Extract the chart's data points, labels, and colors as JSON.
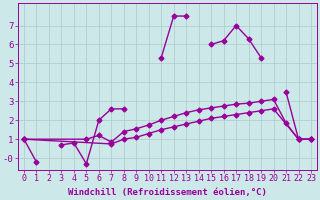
{
  "xlabel": "Windchill (Refroidissement éolien,°C)",
  "background_color": "#cce8e8",
  "grid_color": "#aacccc",
  "line_color": "#990099",
  "x": [
    0,
    1,
    2,
    3,
    4,
    5,
    6,
    7,
    8,
    9,
    10,
    11,
    12,
    13,
    14,
    15,
    16,
    17,
    18,
    19,
    20,
    21,
    22,
    23
  ],
  "series1": [
    1.0,
    -0.2,
    null,
    0.7,
    0.8,
    -0.3,
    2.0,
    2.6,
    2.6,
    null,
    null,
    5.3,
    7.5,
    7.5,
    null,
    6.0,
    6.2,
    7.0,
    6.3,
    5.3,
    null,
    3.5,
    1.0,
    1.0
  ],
  "series2_x": [
    0,
    5,
    6,
    7,
    8,
    9,
    10,
    11,
    12,
    13,
    14,
    15,
    16,
    17,
    18,
    19,
    20,
    21,
    22,
    23
  ],
  "series2_y": [
    1.0,
    1.0,
    1.2,
    0.85,
    1.4,
    1.55,
    1.75,
    2.0,
    2.2,
    2.4,
    2.55,
    2.65,
    2.75,
    2.85,
    2.9,
    3.0,
    3.1,
    1.85,
    1.0,
    1.0
  ],
  "series3_x": [
    0,
    7,
    8,
    9,
    10,
    11,
    12,
    13,
    14,
    15,
    16,
    17,
    18,
    19,
    20,
    22,
    23
  ],
  "series3_y": [
    1.0,
    0.75,
    1.0,
    1.1,
    1.3,
    1.5,
    1.65,
    1.8,
    1.95,
    2.1,
    2.2,
    2.3,
    2.4,
    2.5,
    2.6,
    1.0,
    1.0
  ],
  "xlim": [
    -0.5,
    23.5
  ],
  "ylim": [
    -0.6,
    8.2
  ],
  "yticks": [
    0,
    1,
    2,
    3,
    4,
    5,
    6,
    7
  ],
  "ytick_labels": [
    "-0",
    "1",
    "2",
    "3",
    "4",
    "5",
    "6",
    "7"
  ],
  "xticks": [
    0,
    1,
    2,
    3,
    4,
    5,
    6,
    7,
    8,
    9,
    10,
    11,
    12,
    13,
    14,
    15,
    16,
    17,
    18,
    19,
    20,
    21,
    22,
    23
  ],
  "markersize": 2.5,
  "linewidth": 1.0,
  "fontsize_xlabel": 6.5,
  "fontsize_ticks": 6.0
}
